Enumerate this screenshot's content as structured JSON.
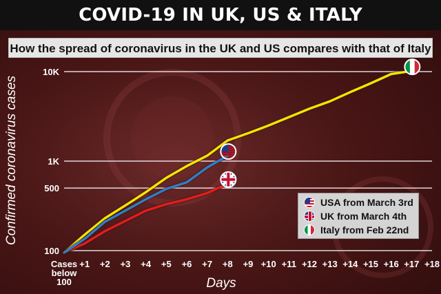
{
  "header": {
    "title": "COVID-19 IN UK, US & ITALY",
    "subtitle": "How the spread of coronavirus in the UK and US compares with that of Italy"
  },
  "colors": {
    "usa": "#2f7fc1",
    "uk": "#e01e1e",
    "italy": "#f2e600",
    "grid": "#ffffff"
  },
  "chart_data": {
    "type": "line",
    "title": "How the spread of coronavirus in the UK and US compares with that of Italy",
    "xlabel": "Days",
    "ylabel": "Confirmed coronavirus cases",
    "yscale": "log",
    "ylim": [
      95,
      13000
    ],
    "y_ticks": [
      {
        "value": 100,
        "label": "100"
      },
      {
        "value": 500,
        "label": "500"
      },
      {
        "value": 1000,
        "label": "1K"
      },
      {
        "value": 10000,
        "label": "10K"
      }
    ],
    "x_ticks": [
      "Cases below 100",
      "+1",
      "+2",
      "+3",
      "+4",
      "+5",
      "+6",
      "+7",
      "+8",
      "+9",
      "+10",
      "+11",
      "+12",
      "+13",
      "+14",
      "+15",
      "+16",
      "+17",
      "+18"
    ],
    "xlim": [
      0,
      18
    ],
    "grid": true,
    "legend": "bottom-right",
    "series": [
      {
        "name": "Italy from Feb 22nd",
        "key": "italy",
        "x": [
          0,
          1,
          2,
          3,
          4,
          5,
          6,
          7,
          8,
          9,
          10,
          11,
          12,
          13,
          14,
          15,
          16,
          17
        ],
        "y": [
          95,
          150,
          230,
          320,
          450,
          650,
          880,
          1150,
          1700,
          2050,
          2500,
          3100,
          3850,
          4650,
          5900,
          7400,
          9400,
          10150
        ]
      },
      {
        "name": "USA from March 3rd",
        "key": "usa",
        "x": [
          0,
          1,
          2,
          3,
          4,
          5,
          6,
          7,
          8
        ],
        "y": [
          95,
          135,
          210,
          280,
          375,
          490,
          580,
          850,
          1150
        ]
      },
      {
        "name": "UK from March 4th",
        "key": "uk",
        "x": [
          0,
          1,
          2,
          3,
          4,
          5,
          6,
          7,
          8
        ],
        "y": [
          95,
          120,
          165,
          215,
          280,
          330,
          375,
          440,
          560
        ]
      }
    ]
  }
}
